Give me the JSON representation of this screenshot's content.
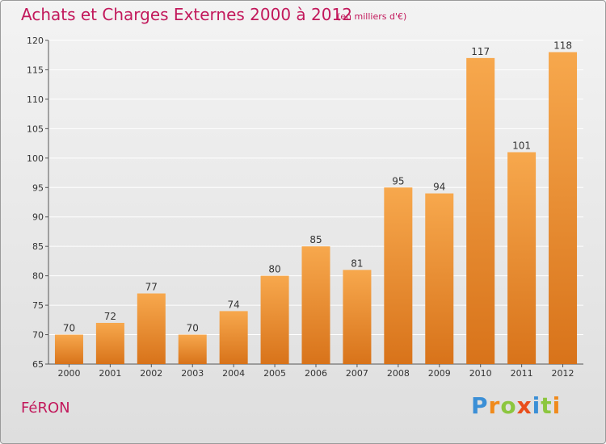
{
  "header": {
    "title": "Achats et Charges Externes 2000 à 2012",
    "subtitle": "(en milliers d'€)"
  },
  "footer": {
    "commune": "FéRON",
    "logo_letters": [
      {
        "char": "P",
        "color": "#3b8fd6"
      },
      {
        "char": "r",
        "color": "#f08a1c"
      },
      {
        "char": "o",
        "color": "#8cc63f"
      },
      {
        "char": "x",
        "color": "#e94e1b"
      },
      {
        "char": "i",
        "color": "#3b8fd6"
      },
      {
        "char": "t",
        "color": "#8cc63f"
      },
      {
        "char": "i",
        "color": "#f08a1c"
      }
    ]
  },
  "chart_data": {
    "type": "bar",
    "title": "Achats et Charges Externes 2000 à 2012",
    "subtitle": "(en milliers d'€)",
    "categories": [
      "2000",
      "2001",
      "2002",
      "2003",
      "2004",
      "2005",
      "2006",
      "2007",
      "2008",
      "2009",
      "2010",
      "2011",
      "2012"
    ],
    "values": [
      70,
      72,
      77,
      70,
      74,
      80,
      85,
      81,
      95,
      94,
      117,
      101,
      118
    ],
    "xlabel": "",
    "ylabel": "",
    "ylim": [
      65,
      120
    ],
    "yticks": [
      65,
      70,
      75,
      80,
      85,
      90,
      95,
      100,
      105,
      110,
      115,
      120
    ],
    "grid": true,
    "legend": "none",
    "bar_color": "#f0942f",
    "colors": {
      "accent": "#c2185b",
      "grid": "#ffffff",
      "axis": "#555555"
    }
  }
}
